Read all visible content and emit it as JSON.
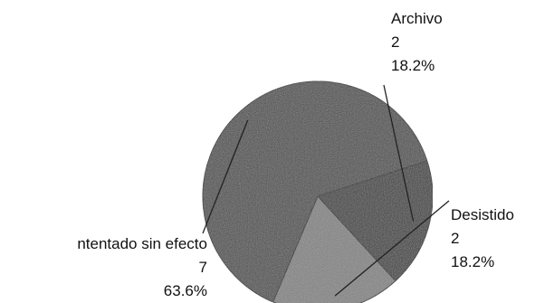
{
  "chart_data": {
    "type": "pie",
    "title": "",
    "slices": [
      {
        "label": "Archivo",
        "value": 2,
        "percent_label": "18.2%",
        "color": "#3a3a3a"
      },
      {
        "label": "Desistido",
        "value": 2,
        "percent_label": "18.2%",
        "color": "#7d7d7d"
      },
      {
        "label": "ntentado sin efecto",
        "value": 7,
        "percent_label": "63.6%",
        "color": "#4a4a4a"
      }
    ],
    "legend": "none",
    "labels": "outside-with-leaders"
  }
}
